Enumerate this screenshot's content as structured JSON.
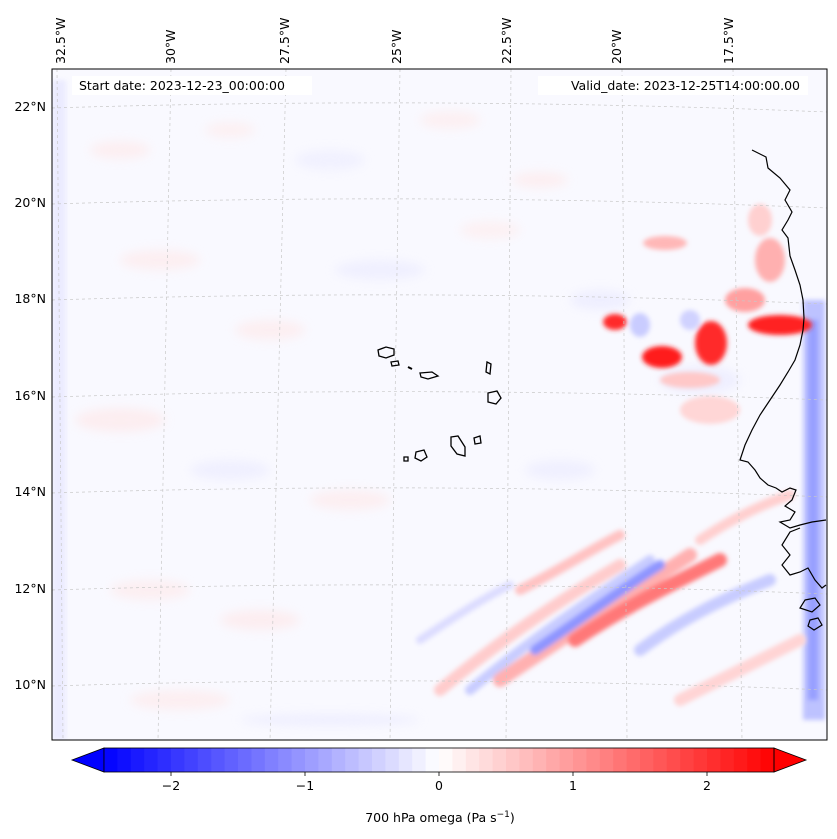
{
  "map": {
    "start_label": "Start date: 2023-12-23_00:00:00",
    "valid_label": "Valid_date: 2023-12-25T14:00:00.00",
    "lon_labels": [
      "32.5°W",
      "30°W",
      "27.5°W",
      "25°W",
      "22.5°W",
      "20°W",
      "17.5°W"
    ],
    "lat_labels": [
      "22°N",
      "20°N",
      "18°N",
      "16°N",
      "14°N",
      "12°N",
      "10°N"
    ],
    "extent": {
      "lon_min": -33.0,
      "lon_max": -15.5,
      "lat_min": 8.8,
      "lat_max": 22.8
    },
    "variable": "700 hPa omega",
    "features": [
      "cape-verde-islands",
      "west-african-coastline",
      "gridlines"
    ]
  },
  "colorbar": {
    "label": "700 hPa omega (Pa s",
    "label_exp": "−1",
    "label_close": ")",
    "tick_labels": [
      "−2",
      "−1",
      "0",
      "1",
      "2"
    ],
    "ticks": [
      -2,
      -1,
      0,
      1,
      2
    ],
    "min": -2.5,
    "max": 2.5,
    "extend": "both",
    "colormap": "bwr",
    "low_color": "#0000ff",
    "mid_color": "#ffffff",
    "high_color": "#ff0000"
  }
}
